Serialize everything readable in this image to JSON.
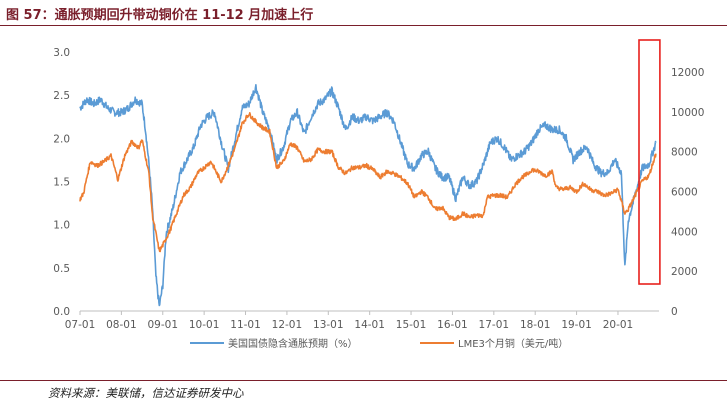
{
  "title": "图 57：通胀预期回升带动铜价在 11-12 月加速上行",
  "source": "资料来源：美联储，信达证券研发中心",
  "chart_data": {
    "type": "line",
    "x_ticks": [
      "07-01",
      "08-01",
      "09-01",
      "10-01",
      "11-01",
      "12-01",
      "13-01",
      "14-01",
      "15-01",
      "16-01",
      "17-01",
      "18-01",
      "19-01",
      "20-01"
    ],
    "y_left": {
      "ticks": [
        "0.0",
        "0.5",
        "1.0",
        "1.5",
        "2.0",
        "2.5",
        "3.0"
      ],
      "range": [
        0,
        3
      ]
    },
    "y_right": {
      "ticks": [
        "0",
        "2000",
        "4000",
        "6000",
        "8000",
        "10000",
        "12000"
      ],
      "range": [
        0,
        13000
      ]
    },
    "grid": false,
    "legend_position": "bottom",
    "highlight_box": {
      "from": "2020-10",
      "to": "2020-12",
      "color": "#e8211d"
    },
    "series": [
      {
        "name": "美国国债隐含通胀预期（%）",
        "axis": "left",
        "color": "#5b9bd5",
        "points": [
          [
            "2007-01",
            2.35
          ],
          [
            "2007-03",
            2.45
          ],
          [
            "2007-05",
            2.4
          ],
          [
            "2007-07",
            2.45
          ],
          [
            "2007-09",
            2.35
          ],
          [
            "2007-11",
            2.3
          ],
          [
            "2008-01",
            2.3
          ],
          [
            "2008-03",
            2.35
          ],
          [
            "2008-05",
            2.45
          ],
          [
            "2008-07",
            2.4
          ],
          [
            "2008-08",
            2.1
          ],
          [
            "2008-09",
            1.7
          ],
          [
            "2008-10",
            1.2
          ],
          [
            "2008-11",
            0.4
          ],
          [
            "2008-12",
            0.05
          ],
          [
            "2009-01",
            0.3
          ],
          [
            "2009-02",
            0.9
          ],
          [
            "2009-04",
            1.2
          ],
          [
            "2009-06",
            1.6
          ],
          [
            "2009-08",
            1.75
          ],
          [
            "2009-10",
            1.9
          ],
          [
            "2009-12",
            2.15
          ],
          [
            "2010-02",
            2.25
          ],
          [
            "2010-04",
            2.3
          ],
          [
            "2010-06",
            1.95
          ],
          [
            "2010-08",
            1.65
          ],
          [
            "2010-10",
            2.0
          ],
          [
            "2010-12",
            2.35
          ],
          [
            "2011-02",
            2.4
          ],
          [
            "2011-04",
            2.6
          ],
          [
            "2011-06",
            2.3
          ],
          [
            "2011-08",
            2.1
          ],
          [
            "2011-10",
            1.75
          ],
          [
            "2011-12",
            1.9
          ],
          [
            "2012-02",
            2.2
          ],
          [
            "2012-04",
            2.3
          ],
          [
            "2012-06",
            2.05
          ],
          [
            "2012-08",
            2.25
          ],
          [
            "2012-10",
            2.4
          ],
          [
            "2012-12",
            2.45
          ],
          [
            "2013-02",
            2.55
          ],
          [
            "2013-04",
            2.35
          ],
          [
            "2013-06",
            2.1
          ],
          [
            "2013-08",
            2.25
          ],
          [
            "2013-10",
            2.2
          ],
          [
            "2013-12",
            2.25
          ],
          [
            "2014-02",
            2.2
          ],
          [
            "2014-04",
            2.25
          ],
          [
            "2014-06",
            2.3
          ],
          [
            "2014-08",
            2.2
          ],
          [
            "2014-10",
            1.95
          ],
          [
            "2014-12",
            1.7
          ],
          [
            "2015-02",
            1.65
          ],
          [
            "2015-04",
            1.8
          ],
          [
            "2015-06",
            1.85
          ],
          [
            "2015-08",
            1.65
          ],
          [
            "2015-10",
            1.55
          ],
          [
            "2015-12",
            1.55
          ],
          [
            "2016-02",
            1.3
          ],
          [
            "2016-04",
            1.55
          ],
          [
            "2016-06",
            1.45
          ],
          [
            "2016-08",
            1.5
          ],
          [
            "2016-10",
            1.7
          ],
          [
            "2016-12",
            1.95
          ],
          [
            "2017-02",
            2.0
          ],
          [
            "2017-04",
            1.9
          ],
          [
            "2017-06",
            1.75
          ],
          [
            "2017-08",
            1.8
          ],
          [
            "2017-10",
            1.85
          ],
          [
            "2017-12",
            1.95
          ],
          [
            "2018-02",
            2.1
          ],
          [
            "2018-04",
            2.15
          ],
          [
            "2018-06",
            2.1
          ],
          [
            "2018-08",
            2.1
          ],
          [
            "2018-10",
            2.0
          ],
          [
            "2018-12",
            1.75
          ],
          [
            "2019-02",
            1.85
          ],
          [
            "2019-04",
            1.9
          ],
          [
            "2019-06",
            1.7
          ],
          [
            "2019-08",
            1.6
          ],
          [
            "2019-10",
            1.6
          ],
          [
            "2019-12",
            1.75
          ],
          [
            "2020-02",
            1.6
          ],
          [
            "2020-03",
            0.5
          ],
          [
            "2020-04",
            1.05
          ],
          [
            "2020-06",
            1.35
          ],
          [
            "2020-08",
            1.65
          ],
          [
            "2020-10",
            1.7
          ],
          [
            "2020-12",
            1.95
          ]
        ]
      },
      {
        "name": "LME3个月铜（美元/吨）",
        "axis": "right",
        "color": "#ed7d31",
        "points": [
          [
            "2007-01",
            5600
          ],
          [
            "2007-02",
            5900
          ],
          [
            "2007-04",
            7500
          ],
          [
            "2007-06",
            7300
          ],
          [
            "2007-08",
            7500
          ],
          [
            "2007-10",
            7800
          ],
          [
            "2007-12",
            6600
          ],
          [
            "2008-02",
            7800
          ],
          [
            "2008-04",
            8500
          ],
          [
            "2008-06",
            8200
          ],
          [
            "2008-07",
            8600
          ],
          [
            "2008-09",
            6900
          ],
          [
            "2008-10",
            4800
          ],
          [
            "2008-12",
            3000
          ],
          [
            "2009-01",
            3300
          ],
          [
            "2009-03",
            4000
          ],
          [
            "2009-05",
            4900
          ],
          [
            "2009-07",
            5800
          ],
          [
            "2009-09",
            6200
          ],
          [
            "2009-11",
            6900
          ],
          [
            "2010-01",
            7200
          ],
          [
            "2010-03",
            7500
          ],
          [
            "2010-05",
            6800
          ],
          [
            "2010-06",
            6500
          ],
          [
            "2010-08",
            7300
          ],
          [
            "2010-10",
            8200
          ],
          [
            "2010-12",
            9400
          ],
          [
            "2011-02",
            9900
          ],
          [
            "2011-04",
            9500
          ],
          [
            "2011-06",
            9200
          ],
          [
            "2011-08",
            9000
          ],
          [
            "2011-10",
            7200
          ],
          [
            "2011-12",
            7500
          ],
          [
            "2012-02",
            8400
          ],
          [
            "2012-04",
            8200
          ],
          [
            "2012-06",
            7500
          ],
          [
            "2012-08",
            7600
          ],
          [
            "2012-10",
            8100
          ],
          [
            "2012-12",
            8000
          ],
          [
            "2013-02",
            8000
          ],
          [
            "2013-04",
            7200
          ],
          [
            "2013-06",
            6900
          ],
          [
            "2013-08",
            7200
          ],
          [
            "2013-10",
            7200
          ],
          [
            "2013-12",
            7300
          ],
          [
            "2014-02",
            7100
          ],
          [
            "2014-04",
            6700
          ],
          [
            "2014-06",
            7000
          ],
          [
            "2014-08",
            6900
          ],
          [
            "2014-10",
            6700
          ],
          [
            "2014-12",
            6400
          ],
          [
            "2015-02",
            5700
          ],
          [
            "2015-04",
            6000
          ],
          [
            "2015-06",
            5700
          ],
          [
            "2015-08",
            5100
          ],
          [
            "2015-10",
            5200
          ],
          [
            "2015-12",
            4700
          ],
          [
            "2016-02",
            4600
          ],
          [
            "2016-04",
            4900
          ],
          [
            "2016-06",
            4700
          ],
          [
            "2016-08",
            4800
          ],
          [
            "2016-10",
            4800
          ],
          [
            "2016-11",
            5700
          ],
          [
            "2017-01",
            5800
          ],
          [
            "2017-03",
            5800
          ],
          [
            "2017-05",
            5700
          ],
          [
            "2017-07",
            6300
          ],
          [
            "2017-09",
            6700
          ],
          [
            "2017-11",
            6900
          ],
          [
            "2017-12",
            7100
          ],
          [
            "2018-02",
            7000
          ],
          [
            "2018-04",
            6800
          ],
          [
            "2018-06",
            7000
          ],
          [
            "2018-07",
            6200
          ],
          [
            "2018-09",
            6100
          ],
          [
            "2018-11",
            6200
          ],
          [
            "2019-01",
            6000
          ],
          [
            "2019-03",
            6400
          ],
          [
            "2019-05",
            6100
          ],
          [
            "2019-07",
            6000
          ],
          [
            "2019-09",
            5800
          ],
          [
            "2019-11",
            5900
          ],
          [
            "2020-01",
            6100
          ],
          [
            "2020-03",
            4900
          ],
          [
            "2020-04",
            5100
          ],
          [
            "2020-06",
            5800
          ],
          [
            "2020-08",
            6500
          ],
          [
            "2020-10",
            6800
          ],
          [
            "2020-12",
            7900
          ]
        ]
      }
    ]
  }
}
